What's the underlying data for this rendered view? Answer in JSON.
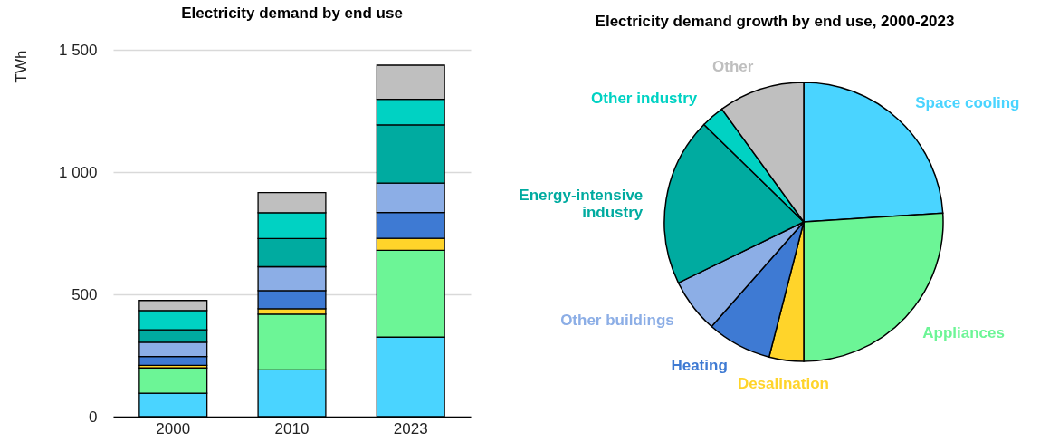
{
  "chart_data": [
    {
      "type": "bar",
      "title": "Electricity demand by end use",
      "ylabel": "TWh",
      "categories": [
        "2000",
        "2010",
        "2023"
      ],
      "stacked": true,
      "series": [
        {
          "color": "#4ad4ff",
          "values": [
            96,
            191,
            325
          ]
        },
        {
          "color": "#6cf596",
          "values": [
            103,
            228,
            355
          ]
        },
        {
          "color": "#ffd42a",
          "values": [
            11,
            22,
            49
          ]
        },
        {
          "color": "#3e7ad3",
          "values": [
            36,
            74,
            106
          ]
        },
        {
          "color": "#8caee6",
          "values": [
            58,
            98,
            120
          ]
        },
        {
          "color": "#00aba0",
          "values": [
            51,
            115,
            238
          ]
        },
        {
          "color": "#00d2c3",
          "values": [
            79,
            106,
            105
          ]
        },
        {
          "color": "#bfbfbf",
          "values": [
            41,
            82,
            139
          ]
        }
      ],
      "ylim": [
        0,
        1500
      ],
      "yticks": [
        0,
        500,
        {
          "value": 1000,
          "label": "1 000"
        },
        {
          "value": 1500,
          "label": "1 500"
        }
      ],
      "grid": "y"
    },
    {
      "type": "pie",
      "title": "Electricity demand growth by end use, 2000-2023",
      "categories": [
        "Space cooling",
        "Appliances",
        "Desalination",
        "Heating",
        "Other buildings",
        "Energy-intensive industry",
        "Other industry",
        "Other"
      ],
      "values": [
        24,
        26,
        4,
        7.5,
        6.3,
        19.5,
        2.7,
        10
      ],
      "colors": [
        "#4ad4ff",
        "#6cf596",
        "#ffd42a",
        "#3e7ad3",
        "#8caee6",
        "#00aba0",
        "#00d2c3",
        "#bfbfbf"
      ]
    }
  ]
}
